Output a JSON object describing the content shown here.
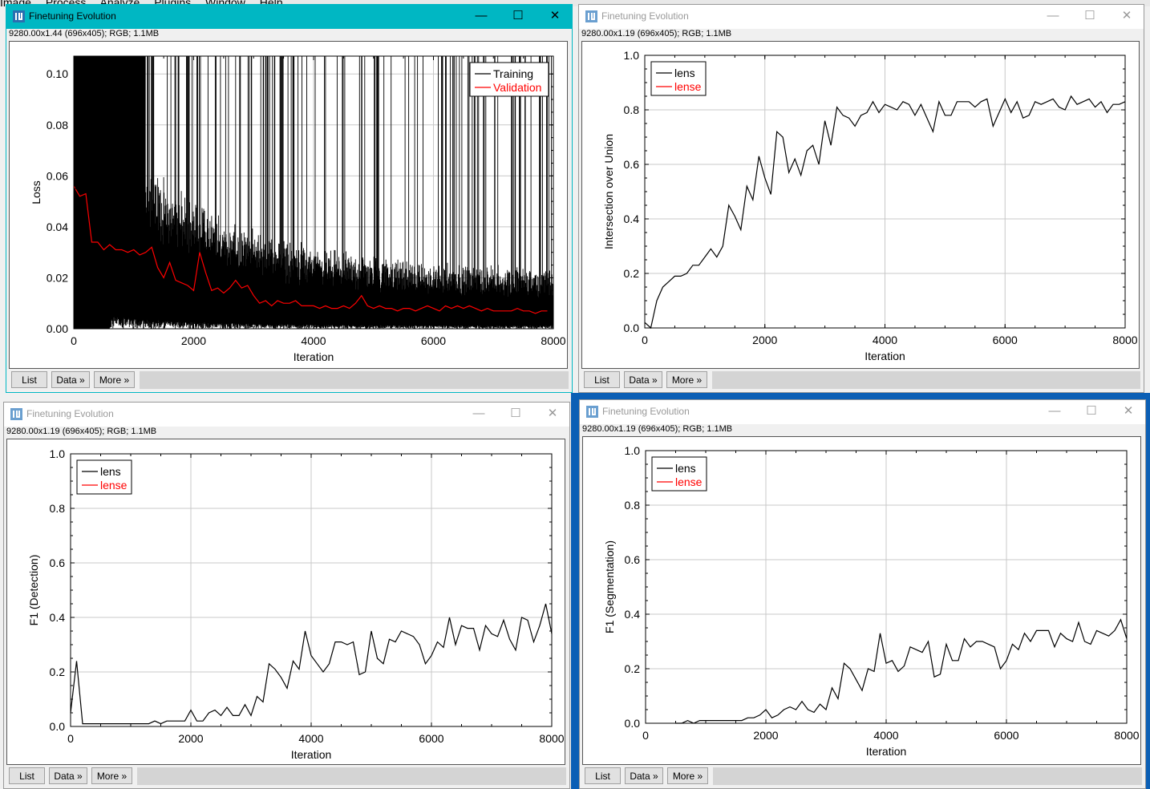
{
  "desktop": {
    "menu": [
      "Image",
      "Process",
      "Analyze",
      "Plugins",
      "Window",
      "Help"
    ]
  },
  "buttons": {
    "list": "List",
    "data": "Data »",
    "more": "More »"
  },
  "window_controls": {
    "minimize": "—",
    "maximize": "☐",
    "close": "✕"
  },
  "colors": {
    "active_title": "#00b7c3",
    "training": "#000000",
    "validation": "#ff0000"
  },
  "windows": [
    {
      "title": "Finetuning Evolution",
      "info": "9280.00x1.44   (696x405); RGB; 1.1MB",
      "active": true
    },
    {
      "title": "Finetuning Evolution",
      "info": "9280.00x1.19   (696x405); RGB; 1.1MB",
      "active": false
    },
    {
      "title": "Finetuning Evolution",
      "info": "9280.00x1.19   (696x405); RGB; 1.1MB",
      "active": false
    },
    {
      "title": "Finetuning Evolution",
      "info": "9280.00x1.19   (696x405); RGB; 1.1MB",
      "active": false
    }
  ],
  "chart_data": [
    {
      "type": "line",
      "xlabel": "Iteration",
      "ylabel": "Loss",
      "xlim": [
        0,
        8000
      ],
      "ylim": [
        0,
        0.107
      ],
      "xticks": [
        0,
        2000,
        4000,
        6000,
        8000
      ],
      "xtick_labels": [
        "0",
        "2000",
        "4000",
        "6000",
        "8000"
      ],
      "yticks": [
        0,
        0.02,
        0.04,
        0.06,
        0.08,
        0.1
      ],
      "ytick_labels": [
        "0.00",
        "0.02",
        "0.04",
        "0.06",
        "0.08",
        "0.10"
      ],
      "grid": true,
      "legend_position": "top-right",
      "series": [
        {
          "name": "Training",
          "color": "#000000",
          "note_values_dense": true
        },
        {
          "name": "Validation",
          "color": "#ff0000",
          "x": [
            0,
            100,
            200,
            300,
            400,
            500,
            600,
            700,
            800,
            900,
            1000,
            1100,
            1200,
            1300,
            1400,
            1500,
            1600,
            1700,
            1800,
            1900,
            2000,
            2100,
            2200,
            2300,
            2400,
            2500,
            2600,
            2700,
            2800,
            2900,
            3000,
            3100,
            3200,
            3300,
            3400,
            3500,
            3600,
            3700,
            3800,
            3900,
            4000,
            4100,
            4200,
            4300,
            4400,
            4500,
            4600,
            4700,
            4800,
            4900,
            5000,
            5100,
            5200,
            5300,
            5400,
            5500,
            5600,
            5700,
            5800,
            5900,
            6000,
            6100,
            6200,
            6300,
            6400,
            6500,
            6600,
            6700,
            6800,
            6900,
            7000,
            7100,
            7200,
            7300,
            7400,
            7500,
            7600,
            7700,
            7800,
            7900
          ],
          "y": [
            0.056,
            0.052,
            0.053,
            0.034,
            0.034,
            0.031,
            0.033,
            0.031,
            0.031,
            0.03,
            0.031,
            0.029,
            0.03,
            0.032,
            0.024,
            0.02,
            0.026,
            0.019,
            0.018,
            0.017,
            0.015,
            0.03,
            0.022,
            0.015,
            0.016,
            0.014,
            0.016,
            0.019,
            0.016,
            0.017,
            0.013,
            0.01,
            0.011,
            0.009,
            0.011,
            0.01,
            0.01,
            0.011,
            0.009,
            0.009,
            0.009,
            0.008,
            0.009,
            0.008,
            0.008,
            0.009,
            0.008,
            0.01,
            0.013,
            0.009,
            0.008,
            0.009,
            0.008,
            0.008,
            0.007,
            0.008,
            0.008,
            0.007,
            0.008,
            0.009,
            0.008,
            0.007,
            0.009,
            0.008,
            0.009,
            0.008,
            0.009,
            0.008,
            0.007,
            0.008,
            0.007,
            0.007,
            0.007,
            0.007,
            0.008,
            0.007,
            0.007,
            0.006,
            0.007,
            0.007
          ]
        }
      ]
    },
    {
      "type": "line",
      "xlabel": "Iteration",
      "ylabel": "Intersection over Union",
      "xlim": [
        0,
        8000
      ],
      "ylim": [
        0,
        1.0
      ],
      "xticks": [
        0,
        2000,
        4000,
        6000,
        8000
      ],
      "xtick_labels": [
        "0",
        "2000",
        "4000",
        "6000",
        "8000"
      ],
      "yticks": [
        0,
        0.2,
        0.4,
        0.6,
        0.8,
        1.0
      ],
      "ytick_labels": [
        "0.0",
        "0.2",
        "0.4",
        "0.6",
        "0.8",
        "1.0"
      ],
      "grid": true,
      "legend_position": "top-left",
      "series": [
        {
          "name": "lens",
          "color": "#000000",
          "x": [
            0,
            100,
            200,
            300,
            400,
            500,
            600,
            700,
            800,
            900,
            1000,
            1100,
            1200,
            1300,
            1400,
            1500,
            1600,
            1700,
            1800,
            1900,
            2000,
            2100,
            2200,
            2300,
            2400,
            2500,
            2600,
            2700,
            2800,
            2900,
            3000,
            3100,
            3200,
            3300,
            3400,
            3500,
            3600,
            3700,
            3800,
            3900,
            4000,
            4100,
            4200,
            4300,
            4400,
            4500,
            4600,
            4700,
            4800,
            4900,
            5000,
            5100,
            5200,
            5300,
            5400,
            5500,
            5600,
            5700,
            5800,
            5900,
            6000,
            6100,
            6200,
            6300,
            6400,
            6500,
            6600,
            6700,
            6800,
            6900,
            7000,
            7100,
            7200,
            7300,
            7400,
            7500,
            7600,
            7700,
            7800,
            7900,
            8000
          ],
          "y": [
            0.02,
            0.0,
            0.1,
            0.15,
            0.17,
            0.19,
            0.19,
            0.2,
            0.23,
            0.23,
            0.26,
            0.29,
            0.26,
            0.3,
            0.45,
            0.41,
            0.36,
            0.52,
            0.47,
            0.63,
            0.55,
            0.49,
            0.72,
            0.7,
            0.57,
            0.62,
            0.56,
            0.65,
            0.67,
            0.6,
            0.76,
            0.67,
            0.81,
            0.78,
            0.77,
            0.74,
            0.78,
            0.79,
            0.83,
            0.79,
            0.82,
            0.81,
            0.8,
            0.83,
            0.82,
            0.78,
            0.82,
            0.77,
            0.72,
            0.83,
            0.78,
            0.78,
            0.83,
            0.83,
            0.83,
            0.81,
            0.83,
            0.84,
            0.74,
            0.79,
            0.84,
            0.79,
            0.83,
            0.77,
            0.78,
            0.83,
            0.82,
            0.83,
            0.84,
            0.81,
            0.8,
            0.85,
            0.82,
            0.83,
            0.84,
            0.81,
            0.83,
            0.79,
            0.82,
            0.82,
            0.83
          ]
        },
        {
          "name": "lense",
          "color": "#ff0000",
          "x": [],
          "y": []
        }
      ]
    },
    {
      "type": "line",
      "xlabel": "Iteration",
      "ylabel": "F1 (Detection)",
      "xlim": [
        0,
        8000
      ],
      "ylim": [
        0,
        1.0
      ],
      "xticks": [
        0,
        2000,
        4000,
        6000,
        8000
      ],
      "xtick_labels": [
        "0",
        "2000",
        "4000",
        "6000",
        "8000"
      ],
      "yticks": [
        0,
        0.2,
        0.4,
        0.6,
        0.8,
        1.0
      ],
      "ytick_labels": [
        "0.0",
        "0.2",
        "0.4",
        "0.6",
        "0.8",
        "1.0"
      ],
      "grid": true,
      "legend_position": "top-left",
      "series": [
        {
          "name": "lens",
          "color": "#000000",
          "x": [
            0,
            100,
            200,
            300,
            400,
            500,
            600,
            700,
            800,
            900,
            1000,
            1100,
            1200,
            1300,
            1400,
            1500,
            1600,
            1700,
            1800,
            1900,
            2000,
            2100,
            2200,
            2300,
            2400,
            2500,
            2600,
            2700,
            2800,
            2900,
            3000,
            3100,
            3200,
            3300,
            3400,
            3500,
            3600,
            3700,
            3800,
            3900,
            4000,
            4100,
            4200,
            4300,
            4400,
            4500,
            4600,
            4700,
            4800,
            4900,
            5000,
            5100,
            5200,
            5300,
            5400,
            5500,
            5600,
            5700,
            5800,
            5900,
            6000,
            6100,
            6200,
            6300,
            6400,
            6500,
            6600,
            6700,
            6800,
            6900,
            7000,
            7100,
            7200,
            7300,
            7400,
            7500,
            7600,
            7700,
            7800,
            7900,
            8000
          ],
          "y": [
            0.05,
            0.24,
            0.01,
            0.01,
            0.01,
            0.01,
            0.01,
            0.01,
            0.01,
            0.01,
            0.01,
            0.01,
            0.01,
            0.01,
            0.02,
            0.01,
            0.02,
            0.02,
            0.02,
            0.02,
            0.06,
            0.02,
            0.02,
            0.05,
            0.06,
            0.04,
            0.07,
            0.04,
            0.04,
            0.08,
            0.04,
            0.11,
            0.09,
            0.23,
            0.21,
            0.18,
            0.14,
            0.24,
            0.21,
            0.35,
            0.26,
            0.23,
            0.2,
            0.23,
            0.31,
            0.31,
            0.3,
            0.31,
            0.19,
            0.2,
            0.35,
            0.25,
            0.23,
            0.32,
            0.31,
            0.35,
            0.34,
            0.33,
            0.3,
            0.23,
            0.26,
            0.31,
            0.29,
            0.4,
            0.3,
            0.37,
            0.36,
            0.36,
            0.28,
            0.37,
            0.34,
            0.33,
            0.39,
            0.32,
            0.28,
            0.4,
            0.39,
            0.31,
            0.37,
            0.45,
            0.34
          ]
        },
        {
          "name": "lense",
          "color": "#ff0000",
          "x": [],
          "y": []
        }
      ]
    },
    {
      "type": "line",
      "xlabel": "Iteration",
      "ylabel": "F1 (Segmentation)",
      "xlim": [
        0,
        8000
      ],
      "ylim": [
        0,
        1.0
      ],
      "xticks": [
        0,
        2000,
        4000,
        6000,
        8000
      ],
      "xtick_labels": [
        "0",
        "2000",
        "4000",
        "6000",
        "8000"
      ],
      "yticks": [
        0,
        0.2,
        0.4,
        0.6,
        0.8,
        1.0
      ],
      "ytick_labels": [
        "0.0",
        "0.2",
        "0.4",
        "0.6",
        "0.8",
        "1.0"
      ],
      "grid": true,
      "legend_position": "top-left",
      "series": [
        {
          "name": "lens",
          "color": "#000000",
          "x": [
            500,
            600,
            700,
            800,
            900,
            1000,
            1100,
            1200,
            1300,
            1400,
            1500,
            1600,
            1700,
            1800,
            1900,
            2000,
            2100,
            2200,
            2300,
            2400,
            2500,
            2600,
            2700,
            2800,
            2900,
            3000,
            3100,
            3200,
            3300,
            3400,
            3500,
            3600,
            3700,
            3800,
            3900,
            4000,
            4100,
            4200,
            4300,
            4400,
            4500,
            4600,
            4700,
            4800,
            4900,
            5000,
            5100,
            5200,
            5300,
            5400,
            5500,
            5600,
            5700,
            5800,
            5900,
            6000,
            6100,
            6200,
            6300,
            6400,
            6500,
            6600,
            6700,
            6800,
            6900,
            7000,
            7100,
            7200,
            7300,
            7400,
            7500,
            7600,
            7700,
            7800,
            7900,
            8000
          ],
          "y": [
            0.0,
            0.0,
            0.01,
            0.0,
            0.01,
            0.01,
            0.01,
            0.01,
            0.01,
            0.01,
            0.01,
            0.01,
            0.02,
            0.02,
            0.03,
            0.05,
            0.02,
            0.03,
            0.05,
            0.06,
            0.05,
            0.08,
            0.05,
            0.04,
            0.07,
            0.05,
            0.13,
            0.09,
            0.22,
            0.2,
            0.16,
            0.12,
            0.2,
            0.19,
            0.33,
            0.22,
            0.23,
            0.19,
            0.21,
            0.28,
            0.27,
            0.26,
            0.3,
            0.17,
            0.18,
            0.29,
            0.23,
            0.23,
            0.31,
            0.28,
            0.3,
            0.3,
            0.29,
            0.28,
            0.2,
            0.23,
            0.29,
            0.27,
            0.33,
            0.3,
            0.34,
            0.34,
            0.34,
            0.28,
            0.33,
            0.31,
            0.3,
            0.37,
            0.3,
            0.29,
            0.34,
            0.33,
            0.32,
            0.34,
            0.38,
            0.31
          ]
        },
        {
          "name": "lense",
          "color": "#ff0000",
          "x": [],
          "y": []
        }
      ]
    }
  ]
}
